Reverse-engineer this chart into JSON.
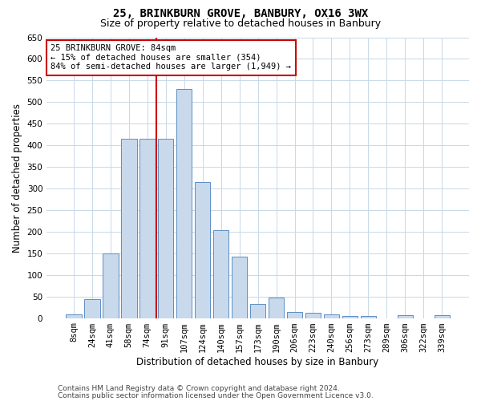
{
  "title": "25, BRINKBURN GROVE, BANBURY, OX16 3WX",
  "subtitle": "Size of property relative to detached houses in Banbury",
  "xlabel": "Distribution of detached houses by size in Banbury",
  "ylabel": "Number of detached properties",
  "categories": [
    "8sqm",
    "24sqm",
    "41sqm",
    "58sqm",
    "74sqm",
    "91sqm",
    "107sqm",
    "124sqm",
    "140sqm",
    "157sqm",
    "173sqm",
    "190sqm",
    "206sqm",
    "223sqm",
    "240sqm",
    "256sqm",
    "273sqm",
    "289sqm",
    "306sqm",
    "322sqm",
    "339sqm"
  ],
  "values": [
    8,
    44,
    150,
    415,
    415,
    415,
    530,
    315,
    203,
    142,
    33,
    47,
    14,
    12,
    8,
    4,
    4,
    0,
    6,
    0,
    6
  ],
  "bar_color": "#c9d9ec",
  "bar_edge_color": "#5b8ec4",
  "vline_color": "#cc0000",
  "vline_x_index": 5,
  "annotation_text": "25 BRINKBURN GROVE: 84sqm\n← 15% of detached houses are smaller (354)\n84% of semi-detached houses are larger (1,949) →",
  "annotation_box_color": "#ffffff",
  "annotation_box_edge_color": "#cc0000",
  "ylim": [
    0,
    650
  ],
  "yticks": [
    0,
    50,
    100,
    150,
    200,
    250,
    300,
    350,
    400,
    450,
    500,
    550,
    600,
    650
  ],
  "footer1": "Contains HM Land Registry data © Crown copyright and database right 2024.",
  "footer2": "Contains public sector information licensed under the Open Government Licence v3.0.",
  "bg_color": "#ffffff",
  "grid_color": "#c8d8e8",
  "title_fontsize": 10,
  "subtitle_fontsize": 9,
  "axis_label_fontsize": 8.5,
  "tick_fontsize": 7.5,
  "footer_fontsize": 6.5,
  "annotation_fontsize": 7.5
}
